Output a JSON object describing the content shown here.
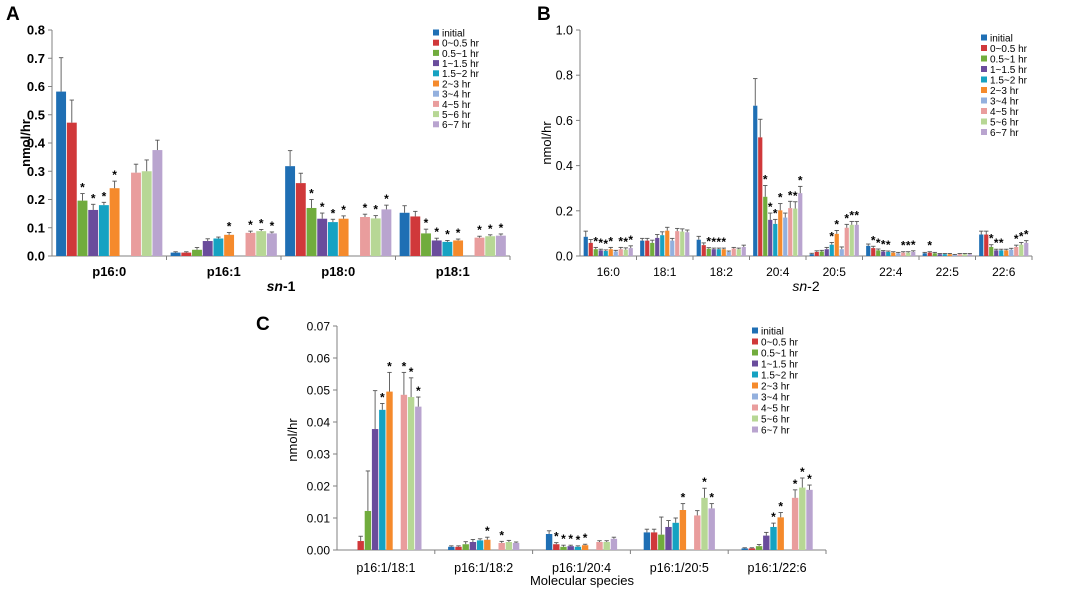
{
  "colors": [
    "#1F6FB4",
    "#D0383A",
    "#71AC3D",
    "#6A4C9C",
    "#16A2C2",
    "#F58A2C",
    "#93B0DE",
    "#E99D9D",
    "#B7D795",
    "#B9A4CF"
  ],
  "legend": [
    "initial",
    "0~0.5 hr",
    "0.5~1 hr",
    "1~1.5 hr",
    "1.5~2 hr",
    "2~3 hr",
    "3~4 hr",
    "4~5 hr",
    "5~6 hr",
    "6~7 hr"
  ],
  "chart_data": [
    {
      "panel": "A",
      "type": "bar",
      "ylabel": "nmol/hr",
      "xlabel_italic": "sn",
      "xlabel_rest": "-1",
      "ylim": [
        0,
        0.8
      ],
      "yticks": [
        "0.0",
        "0.1",
        "0.2",
        "0.3",
        "0.4",
        "0.5",
        "0.6",
        "0.7",
        "0.8"
      ],
      "categories": [
        "p16:0",
        "p16:1",
        "p18:0",
        "p18:1"
      ],
      "values": [
        [
          0.582,
          0.472,
          0.196,
          0.163,
          0.18,
          0.24,
          null,
          0.295,
          0.3,
          0.375
        ],
        [
          0.012,
          0.012,
          0.022,
          0.053,
          0.062,
          0.075,
          null,
          0.082,
          0.088,
          0.08
        ],
        [
          0.318,
          0.258,
          0.17,
          0.132,
          0.12,
          0.132,
          null,
          0.138,
          0.133,
          0.165
        ],
        [
          0.153,
          0.14,
          0.08,
          0.055,
          0.05,
          0.055,
          null,
          0.065,
          0.07,
          0.072
        ]
      ],
      "errors": [
        [
          0.12,
          0.08,
          0.025,
          0.02,
          0.01,
          0.025,
          null,
          0.03,
          0.04,
          0.035
        ],
        [
          0.003,
          0.003,
          0.008,
          0.008,
          0.005,
          0.008,
          null,
          0.006,
          0.006,
          0.005
        ],
        [
          0.055,
          0.035,
          0.03,
          0.02,
          0.01,
          0.01,
          null,
          0.01,
          0.01,
          0.015
        ],
        [
          0.025,
          0.018,
          0.015,
          0.008,
          0.005,
          0.005,
          null,
          0.005,
          0.005,
          0.006
        ]
      ],
      "stars": [
        [
          false,
          false,
          true,
          true,
          true,
          true,
          false,
          false,
          false,
          false
        ],
        [
          false,
          false,
          false,
          false,
          false,
          true,
          false,
          true,
          true,
          true
        ],
        [
          false,
          false,
          true,
          true,
          true,
          true,
          false,
          true,
          true,
          true
        ],
        [
          false,
          false,
          true,
          true,
          true,
          true,
          false,
          true,
          true,
          true
        ]
      ]
    },
    {
      "panel": "B",
      "type": "bar",
      "ylabel": "nmol/hr",
      "xlabel_italic": "sn",
      "xlabel_rest": "-2",
      "ylim": [
        0,
        1.0
      ],
      "yticks": [
        "0.0",
        "0.2",
        "0.4",
        "0.6",
        "0.8",
        "1.0"
      ],
      "categories": [
        "16:0",
        "18:1",
        "18:2",
        "20:4",
        "20:5",
        "22:4",
        "22:5",
        "22:6"
      ],
      "values": [
        [
          0.085,
          0.058,
          0.03,
          0.025,
          0.022,
          0.03,
          0.02,
          0.03,
          0.028,
          0.035
        ],
        [
          0.068,
          0.068,
          0.058,
          0.08,
          0.092,
          0.112,
          0.068,
          0.11,
          0.108,
          0.105
        ],
        [
          0.072,
          0.048,
          0.032,
          0.03,
          0.03,
          0.03,
          0.018,
          0.033,
          0.03,
          0.04
        ],
        [
          0.665,
          0.525,
          0.262,
          0.16,
          0.142,
          0.202,
          0.17,
          0.212,
          0.21,
          0.278
        ],
        [
          0.008,
          0.018,
          0.02,
          0.03,
          0.05,
          0.098,
          0.03,
          0.125,
          0.138,
          0.138
        ],
        [
          0.045,
          0.035,
          0.025,
          0.02,
          0.018,
          0.015,
          0.012,
          0.015,
          0.015,
          0.018
        ],
        [
          0.012,
          0.015,
          0.012,
          0.008,
          0.008,
          0.008,
          0.005,
          0.008,
          0.008,
          0.008
        ],
        [
          0.095,
          0.095,
          0.04,
          0.025,
          0.025,
          0.025,
          0.028,
          0.04,
          0.05,
          0.058
        ]
      ],
      "errors": [
        [
          0.025,
          0.015,
          0.008,
          0.005,
          0.005,
          0.008,
          0.005,
          0.008,
          0.008,
          0.01
        ],
        [
          0.01,
          0.01,
          0.012,
          0.015,
          0.015,
          0.015,
          0.01,
          0.012,
          0.012,
          0.01
        ],
        [
          0.015,
          0.01,
          0.005,
          0.005,
          0.005,
          0.005,
          0.004,
          0.005,
          0.005,
          0.008
        ],
        [
          0.12,
          0.08,
          0.05,
          0.03,
          0.02,
          0.03,
          0.02,
          0.03,
          0.03,
          0.03
        ],
        [
          0.004,
          0.005,
          0.005,
          0.008,
          0.01,
          0.015,
          0.01,
          0.015,
          0.015,
          0.015
        ],
        [
          0.008,
          0.008,
          0.006,
          0.004,
          0.004,
          0.004,
          0.004,
          0.004,
          0.004,
          0.005
        ],
        [
          0.004,
          0.004,
          0.004,
          0.003,
          0.003,
          0.003,
          0.002,
          0.003,
          0.003,
          0.003
        ],
        [
          0.015,
          0.015,
          0.01,
          0.005,
          0.005,
          0.005,
          0.006,
          0.008,
          0.01,
          0.01
        ]
      ],
      "stars": [
        [
          false,
          false,
          true,
          true,
          true,
          true,
          false,
          true,
          true,
          true
        ],
        [
          false,
          false,
          false,
          false,
          false,
          false,
          false,
          false,
          false,
          false
        ],
        [
          false,
          false,
          true,
          true,
          true,
          true,
          false,
          false,
          false,
          false
        ],
        [
          false,
          false,
          true,
          true,
          true,
          true,
          false,
          true,
          true,
          true
        ],
        [
          false,
          false,
          false,
          false,
          true,
          true,
          false,
          true,
          true,
          true
        ],
        [
          false,
          true,
          true,
          true,
          true,
          false,
          false,
          true,
          true,
          true
        ],
        [
          false,
          true,
          false,
          false,
          false,
          false,
          false,
          false,
          false,
          false
        ],
        [
          false,
          false,
          true,
          true,
          true,
          false,
          false,
          true,
          true,
          true
        ]
      ]
    },
    {
      "panel": "C",
      "type": "bar",
      "ylabel": "nmol/hr",
      "xlabel": "Molecular species",
      "ylim": [
        0,
        0.07
      ],
      "yticks": [
        "0.00",
        "0.01",
        "0.02",
        "0.03",
        "0.04",
        "0.05",
        "0.06",
        "0.07"
      ],
      "categories": [
        "p16:1/18:1",
        "p16:1/18:2",
        "p16:1/20:4",
        "p16:1/20:5",
        "p16:1/22:6"
      ],
      "values": [
        [
          null,
          0.0028,
          0.0122,
          0.0378,
          0.0438,
          0.0495,
          null,
          0.0485,
          0.0478,
          0.0448
        ],
        [
          0.001,
          0.001,
          0.0018,
          0.0025,
          0.003,
          0.0032,
          null,
          0.0022,
          0.0025,
          0.0022
        ],
        [
          0.005,
          0.0018,
          0.001,
          0.0012,
          0.001,
          0.0015,
          null,
          0.0025,
          0.0025,
          0.0035
        ],
        [
          0.0055,
          0.0055,
          0.0048,
          0.0072,
          0.0085,
          0.0125,
          null,
          0.0108,
          0.0163,
          0.013
        ],
        [
          0.0005,
          0.0005,
          0.0012,
          0.0045,
          0.0072,
          0.0102,
          null,
          0.0163,
          0.0195,
          0.0188
        ]
      ],
      "errors": [
        [
          null,
          0.0015,
          0.0125,
          0.012,
          0.002,
          0.006,
          null,
          0.007,
          0.006,
          0.003
        ],
        [
          0.0003,
          0.0003,
          0.0008,
          0.0008,
          0.0005,
          0.0008,
          null,
          0.0005,
          0.0005,
          0.0003
        ],
        [
          0.001,
          0.0005,
          0.0005,
          0.0003,
          0.0003,
          0.0003,
          null,
          0.0004,
          0.0004,
          0.0005
        ],
        [
          0.001,
          0.001,
          0.0055,
          0.002,
          0.0015,
          0.002,
          null,
          0.0015,
          0.003,
          0.0015
        ],
        [
          0.0002,
          0.0002,
          0.0005,
          0.001,
          0.0012,
          0.0015,
          null,
          0.0025,
          0.003,
          0.0015
        ]
      ],
      "stars": [
        [
          false,
          false,
          false,
          false,
          true,
          true,
          false,
          true,
          true,
          true
        ],
        [
          false,
          false,
          false,
          false,
          false,
          true,
          false,
          true,
          false,
          false
        ],
        [
          false,
          true,
          true,
          true,
          true,
          true,
          false,
          false,
          false,
          false
        ],
        [
          false,
          false,
          false,
          false,
          false,
          true,
          false,
          false,
          true,
          true
        ],
        [
          false,
          false,
          false,
          false,
          true,
          true,
          false,
          true,
          true,
          true
        ]
      ]
    }
  ]
}
